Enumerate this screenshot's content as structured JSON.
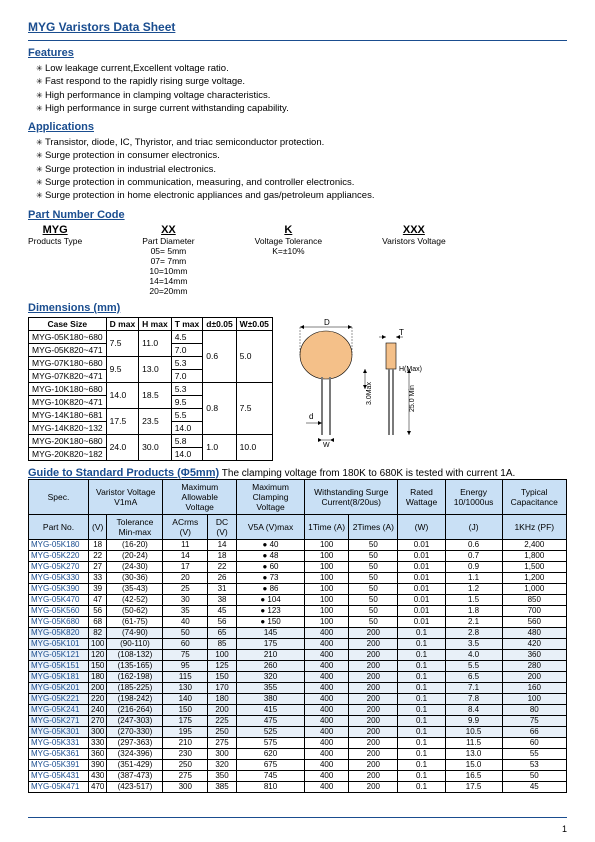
{
  "page": {
    "title": "MYG Varistors Data Sheet",
    "num": "1"
  },
  "features": {
    "head": "Features",
    "items": [
      "Low leakage current,Excellent voltage ratio.",
      "Fast respond to the rapidly rising surge voltage.",
      "High performance in clamping voltage characteristics.",
      "High performance in surge current withstanding capability."
    ]
  },
  "applications": {
    "head": "Applications",
    "items": [
      "Transistor, diode, IC, Thyristor, and triac semiconductor protection.",
      "Surge protection in consumer electronics.",
      "Surge protection in industrial electronics.",
      "Surge protection in communication, measuring, and controller electronics.",
      "Surge protection in home electronic appliances and gas/petroleum appliances."
    ]
  },
  "pncode": {
    "head": "Part Number Code",
    "cols": [
      {
        "h": "MYG",
        "s": "Products Type",
        "v": []
      },
      {
        "h": "XX",
        "s": "Part Diameter",
        "v": [
          "05= 5mm",
          "07= 7mm",
          "10=10mm",
          "14=14mm",
          "20=20mm"
        ]
      },
      {
        "h": "K",
        "s": "Voltage Tolerance",
        "v": [
          "K=±10%"
        ]
      },
      {
        "h": "XXX",
        "s": "Varistors Voltage",
        "v": []
      }
    ]
  },
  "dimensions": {
    "head": "Dimensions (mm)",
    "headers": [
      "Case Size",
      "D max",
      "H max",
      "T max",
      "d±0.05",
      "W±0.05"
    ],
    "groups": [
      {
        "sizes": [
          "MYG-05K180~680",
          "MYG-05K820~471"
        ],
        "D": "7.5",
        "H": "11.0",
        "T": [
          "4.5",
          "7.0"
        ],
        "d": "0.6",
        "W": "5.0",
        "dspan": 4,
        "wspan": 4
      },
      {
        "sizes": [
          "MYG-07K180~680",
          "MYG-07K820~471"
        ],
        "D": "9.5",
        "H": "13.0",
        "T": [
          "5.3",
          "7.0"
        ]
      },
      {
        "sizes": [
          "MYG-10K180~680",
          "MYG-10K820~471"
        ],
        "D": "14.0",
        "H": "18.5",
        "T": [
          "5.3",
          "9.5"
        ],
        "d": "0.8",
        "W": "7.5",
        "dspan": 4,
        "wspan": 4
      },
      {
        "sizes": [
          "MYG-14K180~681",
          "MYG-14K820~132"
        ],
        "D": "17.5",
        "H": "23.5",
        "T": [
          "5.5",
          "14.0"
        ]
      },
      {
        "sizes": [
          "MYG-20K180~680",
          "MYG-20K820~182"
        ],
        "D": "24.0",
        "H": "30.0",
        "T": [
          "5.8",
          "14.0"
        ],
        "d": "1.0",
        "W": "10.0",
        "dspan": 2,
        "wspan": 2
      }
    ],
    "diagram": {
      "body_color": "#f4c089",
      "labels": {
        "D": "D",
        "T": "T",
        "H": "H(Max)",
        "d": "d",
        "W": "W",
        "L1": "3.0Max",
        "L2": "25.0 Min"
      }
    }
  },
  "guide": {
    "head": "Guide to Standard Products (Φ5mm)",
    "note": "The clamping voltage from 180K to 680K is tested with current 1A.",
    "headers": {
      "spec": "Spec.",
      "vv": "Varistor Voltage V1mA",
      "mav": "Maximum Allowable Voltage",
      "mcv": "Maximum Clamping Voltage",
      "wsc": "Withstanding Surge Current(8/20us)",
      "rw": "Rated Wattage",
      "en": "Energy 10/1000us",
      "tc": "Typical Capacitance",
      "pn": "Part No.",
      "v": "(V)",
      "tol": "Tolerance Min-max",
      "ac": "ACrms (V)",
      "dc": "DC (V)",
      "v5a": "V5A (V)max",
      "t1": "1Time (A)",
      "t2": "2Times (A)",
      "w": "(W)",
      "j": "(J)",
      "pf": "1KHz (PF)"
    },
    "rows": [
      {
        "pn": "MYG-05K180",
        "v": "18",
        "tol": "(16-20)",
        "ac": "11",
        "dc": "14",
        "v5a": "● 40",
        "t1": "100",
        "t2": "50",
        "w": "0.01",
        "j": "0.6",
        "pf": "2,400"
      },
      {
        "pn": "MYG-05K220",
        "v": "22",
        "tol": "(20-24)",
        "ac": "14",
        "dc": "18",
        "v5a": "● 48",
        "t1": "100",
        "t2": "50",
        "w": "0.01",
        "j": "0.7",
        "pf": "1,800"
      },
      {
        "pn": "MYG-05K270",
        "v": "27",
        "tol": "(24-30)",
        "ac": "17",
        "dc": "22",
        "v5a": "● 60",
        "t1": "100",
        "t2": "50",
        "w": "0.01",
        "j": "0.9",
        "pf": "1,500"
      },
      {
        "pn": "MYG-05K330",
        "v": "33",
        "tol": "(30-36)",
        "ac": "20",
        "dc": "26",
        "v5a": "● 73",
        "t1": "100",
        "t2": "50",
        "w": "0.01",
        "j": "1.1",
        "pf": "1,200"
      },
      {
        "pn": "MYG-05K390",
        "v": "39",
        "tol": "(35-43)",
        "ac": "25",
        "dc": "31",
        "v5a": "● 86",
        "t1": "100",
        "t2": "50",
        "w": "0.01",
        "j": "1.2",
        "pf": "1,000"
      },
      {
        "pn": "MYG-05K470",
        "v": "47",
        "tol": "(42-52)",
        "ac": "30",
        "dc": "38",
        "v5a": "● 104",
        "t1": "100",
        "t2": "50",
        "w": "0.01",
        "j": "1.5",
        "pf": "850"
      },
      {
        "pn": "MYG-05K560",
        "v": "56",
        "tol": "(50-62)",
        "ac": "35",
        "dc": "45",
        "v5a": "● 123",
        "t1": "100",
        "t2": "50",
        "w": "0.01",
        "j": "1.8",
        "pf": "700"
      },
      {
        "pn": "MYG-05K680",
        "v": "68",
        "tol": "(61-75)",
        "ac": "40",
        "dc": "56",
        "v5a": "● 150",
        "t1": "100",
        "t2": "50",
        "w": "0.01",
        "j": "2.1",
        "pf": "560"
      },
      {
        "pn": "MYG-05K820",
        "v": "82",
        "tol": "(74-90)",
        "ac": "50",
        "dc": "65",
        "v5a": "145",
        "t1": "400",
        "t2": "200",
        "w": "0.1",
        "j": "2.8",
        "pf": "480",
        "band": true
      },
      {
        "pn": "MYG-05K101",
        "v": "100",
        "tol": "(90-110)",
        "ac": "60",
        "dc": "85",
        "v5a": "175",
        "t1": "400",
        "t2": "200",
        "w": "0.1",
        "j": "3.5",
        "pf": "420",
        "band": true
      },
      {
        "pn": "MYG-05K121",
        "v": "120",
        "tol": "(108-132)",
        "ac": "75",
        "dc": "100",
        "v5a": "210",
        "t1": "400",
        "t2": "200",
        "w": "0.1",
        "j": "4.0",
        "pf": "360",
        "band": true
      },
      {
        "pn": "MYG-05K151",
        "v": "150",
        "tol": "(135-165)",
        "ac": "95",
        "dc": "125",
        "v5a": "260",
        "t1": "400",
        "t2": "200",
        "w": "0.1",
        "j": "5.5",
        "pf": "280",
        "band": true
      },
      {
        "pn": "MYG-05K181",
        "v": "180",
        "tol": "(162-198)",
        "ac": "115",
        "dc": "150",
        "v5a": "320",
        "t1": "400",
        "t2": "200",
        "w": "0.1",
        "j": "6.5",
        "pf": "200",
        "band": true
      },
      {
        "pn": "MYG-05K201",
        "v": "200",
        "tol": "(185-225)",
        "ac": "130",
        "dc": "170",
        "v5a": "355",
        "t1": "400",
        "t2": "200",
        "w": "0.1",
        "j": "7.1",
        "pf": "160",
        "band": true
      },
      {
        "pn": "MYG-05K221",
        "v": "220",
        "tol": "(198-242)",
        "ac": "140",
        "dc": "180",
        "v5a": "380",
        "t1": "400",
        "t2": "200",
        "w": "0.1",
        "j": "7.8",
        "pf": "100",
        "band": true
      },
      {
        "pn": "MYG-05K241",
        "v": "240",
        "tol": "(216-264)",
        "ac": "150",
        "dc": "200",
        "v5a": "415",
        "t1": "400",
        "t2": "200",
        "w": "0.1",
        "j": "8.4",
        "pf": "80",
        "band": true
      },
      {
        "pn": "MYG-05K271",
        "v": "270",
        "tol": "(247-303)",
        "ac": "175",
        "dc": "225",
        "v5a": "475",
        "t1": "400",
        "t2": "200",
        "w": "0.1",
        "j": "9.9",
        "pf": "75",
        "band": true
      },
      {
        "pn": "MYG-05K301",
        "v": "300",
        "tol": "(270-330)",
        "ac": "195",
        "dc": "250",
        "v5a": "525",
        "t1": "400",
        "t2": "200",
        "w": "0.1",
        "j": "10.5",
        "pf": "66",
        "band": true
      },
      {
        "pn": "MYG-05K331",
        "v": "330",
        "tol": "(297-363)",
        "ac": "210",
        "dc": "275",
        "v5a": "575",
        "t1": "400",
        "t2": "200",
        "w": "0.1",
        "j": "11.5",
        "pf": "60"
      },
      {
        "pn": "MYG-05K361",
        "v": "360",
        "tol": "(324-396)",
        "ac": "230",
        "dc": "300",
        "v5a": "620",
        "t1": "400",
        "t2": "200",
        "w": "0.1",
        "j": "13.0",
        "pf": "55"
      },
      {
        "pn": "MYG-05K391",
        "v": "390",
        "tol": "(351-429)",
        "ac": "250",
        "dc": "320",
        "v5a": "675",
        "t1": "400",
        "t2": "200",
        "w": "0.1",
        "j": "15.0",
        "pf": "53"
      },
      {
        "pn": "MYG-05K431",
        "v": "430",
        "tol": "(387-473)",
        "ac": "275",
        "dc": "350",
        "v5a": "745",
        "t1": "400",
        "t2": "200",
        "w": "0.1",
        "j": "16.5",
        "pf": "50"
      },
      {
        "pn": "MYG-05K471",
        "v": "470",
        "tol": "(423-517)",
        "ac": "300",
        "dc": "385",
        "v5a": "810",
        "t1": "400",
        "t2": "200",
        "w": "0.1",
        "j": "17.5",
        "pf": "45"
      }
    ]
  }
}
